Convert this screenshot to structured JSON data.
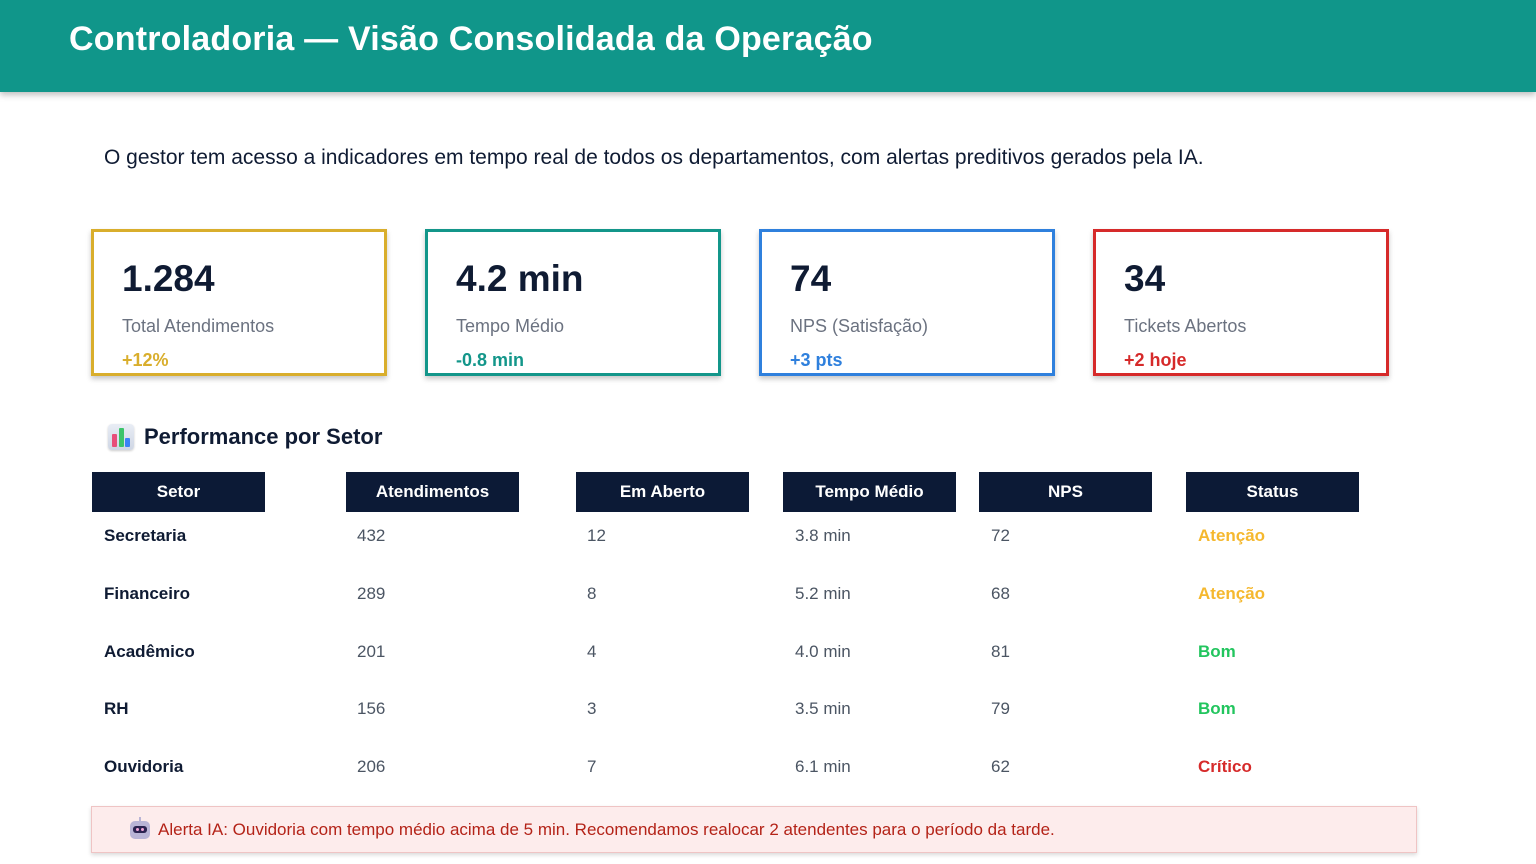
{
  "header": {
    "title": "Controladoria — Visão Consolidada da Operação"
  },
  "subtitle": "O gestor tem acesso a indicadores em tempo real de todos os departamentos, com alertas preditivos gerados pela IA.",
  "colors": {
    "header_bg": "#10968a",
    "kpi_gold": "#d9ae2c",
    "kpi_teal": "#13968a",
    "kpi_blue": "#2f80dd",
    "kpi_red": "#d62a2a",
    "status_warning": "#f5b82e",
    "status_good": "#22c55e",
    "status_critical": "#d62a2a",
    "table_header_bg": "#0c1a36"
  },
  "kpis": [
    {
      "value": "1.284",
      "label": "Total Atendimentos",
      "delta": "+12%"
    },
    {
      "value": "4.2 min",
      "label": "Tempo Médio",
      "delta": "-0.8 min"
    },
    {
      "value": "74",
      "label": "NPS (Satisfação)",
      "delta": "+3 pts"
    },
    {
      "value": "34",
      "label": "Tickets Abertos",
      "delta": "+2 hoje"
    }
  ],
  "performance": {
    "icon": "bar-chart-icon",
    "title": "Performance por Setor",
    "columns": [
      "Setor",
      "Atendimentos",
      "Em Aberto",
      "Tempo Médio",
      "NPS",
      "Status"
    ],
    "rows": [
      {
        "setor": "Secretaria",
        "atendimentos": "432",
        "em_aberto": "12",
        "tempo_medio": "3.8 min",
        "nps": "72",
        "status": "Atenção",
        "status_level": "warning"
      },
      {
        "setor": "Financeiro",
        "atendimentos": "289",
        "em_aberto": "8",
        "tempo_medio": "5.2 min",
        "nps": "68",
        "status": "Atenção",
        "status_level": "warning"
      },
      {
        "setor": "Acadêmico",
        "atendimentos": "201",
        "em_aberto": "4",
        "tempo_medio": "4.0 min",
        "nps": "81",
        "status": "Bom",
        "status_level": "good"
      },
      {
        "setor": "RH",
        "atendimentos": "156",
        "em_aberto": "3",
        "tempo_medio": "3.5 min",
        "nps": "79",
        "status": "Bom",
        "status_level": "good"
      },
      {
        "setor": "Ouvidoria",
        "atendimentos": "206",
        "em_aberto": "7",
        "tempo_medio": "6.1 min",
        "nps": "62",
        "status": "Crítico",
        "status_level": "critical"
      }
    ]
  },
  "alert": {
    "icon": "robot-icon",
    "text": "Alerta IA: Ouvidoria com tempo médio acima de 5 min. Recomendamos realocar 2 atendentes para o período da tarde."
  }
}
